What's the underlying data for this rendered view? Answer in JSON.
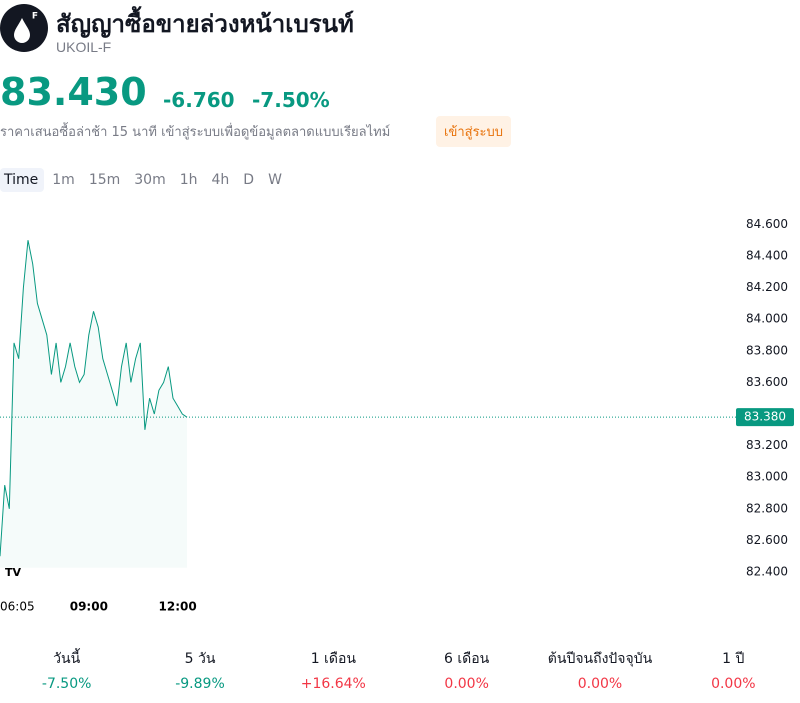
{
  "header": {
    "title": "สัญญาซื้อขายล่วงหน้าเบรนท์",
    "symbol": "UKOIL-F",
    "price": "83.430",
    "change": "-6.760",
    "change_percent": "-7.50%",
    "note": "ราคาเสนอซื้อล่าช้า 15 นาที เข้าสู่ระบบเพื่อดูข้อมูลตลาดแบบเรียลไทม์",
    "login": "เข้าสู่ระบบ"
  },
  "intervals": [
    "Time",
    "1m",
    "15m",
    "30m",
    "1h",
    "4h",
    "D",
    "W"
  ],
  "chart_data": {
    "type": "line",
    "color": "#089981",
    "categories": [
      "06:05",
      null,
      null,
      null,
      null,
      null,
      null,
      null,
      null,
      null,
      null,
      null,
      null,
      null,
      null,
      null,
      null,
      null,
      null,
      "09:00",
      null,
      null,
      null,
      null,
      null,
      null,
      null,
      null,
      null,
      null,
      null,
      null,
      null,
      null,
      null,
      null,
      null,
      null,
      "12:00",
      null,
      null
    ],
    "values": [
      82.5,
      82.95,
      82.8,
      83.85,
      83.75,
      84.2,
      84.5,
      84.35,
      84.1,
      84.0,
      83.9,
      83.65,
      83.85,
      83.6,
      83.7,
      83.85,
      83.7,
      83.6,
      83.65,
      83.9,
      84.05,
      83.95,
      83.75,
      83.65,
      83.55,
      83.45,
      83.7,
      83.85,
      83.6,
      83.75,
      83.85,
      83.3,
      83.5,
      83.4,
      83.55,
      83.6,
      83.7,
      83.5,
      83.45,
      83.4,
      83.38
    ],
    "ylim": [
      82.3,
      84.75
    ],
    "yticks": [
      {
        "value": 82.4,
        "label": "82.400"
      },
      {
        "value": 82.6,
        "label": "82.600"
      },
      {
        "value": 82.8,
        "label": "82.800"
      },
      {
        "value": 83.0,
        "label": "83.000"
      },
      {
        "value": 83.2,
        "label": "83.200"
      },
      {
        "value": 83.6,
        "label": "83.600"
      },
      {
        "value": 83.8,
        "label": "83.800"
      },
      {
        "value": 84.0,
        "label": "84.000"
      },
      {
        "value": 84.2,
        "label": "84.200"
      },
      {
        "value": 84.4,
        "label": "84.400"
      },
      {
        "value": 84.6,
        "label": "84.600"
      }
    ],
    "last_price": {
      "value": 83.38,
      "label": "83.380"
    }
  },
  "periods": [
    {
      "label": "วันนี้",
      "change": "-7.50%",
      "color": "#089981"
    },
    {
      "label": "5 วัน",
      "change": "-9.89%",
      "color": "#089981"
    },
    {
      "label": "1 เดือน",
      "change": "+16.64%",
      "color": "#f23645"
    },
    {
      "label": "6 เดือน",
      "change": "0.00%",
      "color": "#f23645"
    },
    {
      "label": "ต้นปีจนถึงปัจจุบัน",
      "change": "0.00%",
      "color": "#f23645"
    },
    {
      "label": "1 ปี",
      "change": "0.00%",
      "color": "#f23645"
    }
  ]
}
